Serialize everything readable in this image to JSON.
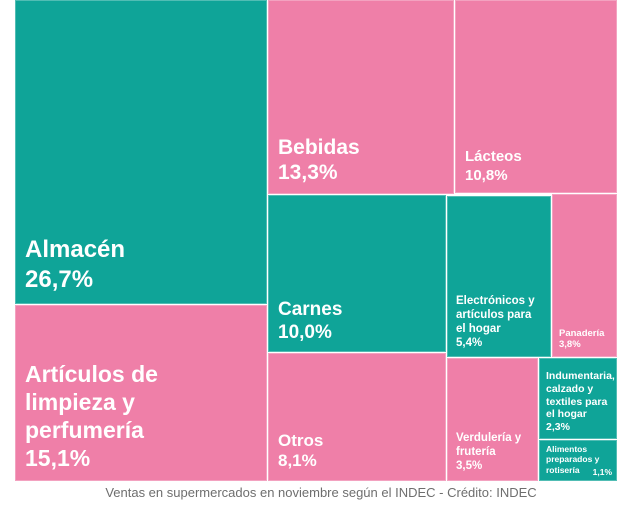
{
  "caption": "Ventas en supermercados en noviembre según el INDEC - Crédito: INDEC",
  "colors": {
    "teal": "#0FA498",
    "pink": "#EF7FA8",
    "label_text": "#FFFFFF",
    "caption_text": "#6E6E6E"
  },
  "cells": {
    "almacen": {
      "label": "Almacén",
      "value": "26,7%"
    },
    "articulos": {
      "label": "Artículos de\nlimpieza y\nperfumería",
      "value": "15,1%"
    },
    "bebidas": {
      "label": "Bebidas",
      "value": "13,3%"
    },
    "lacteos": {
      "label": "Lácteos",
      "value": "10,8%"
    },
    "carnes": {
      "label": "Carnes",
      "value": "10,0%"
    },
    "otros": {
      "label": "Otros",
      "value": "8,1%"
    },
    "electronicos": {
      "label": "Electrónicos y\nartículos para\nel hogar",
      "value": "5,4%"
    },
    "panaderia": {
      "label": "Panadería",
      "value": "3,8%"
    },
    "verduleria": {
      "label": "Verdulería y\nfrutería",
      "value": "3,5%"
    },
    "indumentaria": {
      "label": "Indumentaria,\ncalzado y\ntextiles para\nel hogar",
      "value": "2,3%"
    },
    "alimentos": {
      "label": "Alimentos\npreparados y\nrotisería",
      "value": "1,1%"
    }
  },
  "chart_data": {
    "type": "treemap",
    "title": "",
    "caption": "Ventas en supermercados en noviembre según el INDEC - Crédito: INDEC",
    "value_unit": "%",
    "decimal_separator": ",",
    "legend": "none",
    "items": [
      {
        "name": "Almacén",
        "value": 26.7,
        "color": "#0FA498"
      },
      {
        "name": "Artículos de limpieza y perfumería",
        "value": 15.1,
        "color": "#EF7FA8"
      },
      {
        "name": "Bebidas",
        "value": 13.3,
        "color": "#EF7FA8"
      },
      {
        "name": "Lácteos",
        "value": 10.8,
        "color": "#EF7FA8"
      },
      {
        "name": "Carnes",
        "value": 10.0,
        "color": "#0FA498"
      },
      {
        "name": "Otros",
        "value": 8.1,
        "color": "#EF7FA8"
      },
      {
        "name": "Electrónicos y artículos para el hogar",
        "value": 5.4,
        "color": "#0FA498"
      },
      {
        "name": "Panadería",
        "value": 3.8,
        "color": "#EF7FA8"
      },
      {
        "name": "Verdulería y frutería",
        "value": 3.5,
        "color": "#EF7FA8"
      },
      {
        "name": "Indumentaria, calzado y textiles para el hogar",
        "value": 2.3,
        "color": "#0FA498"
      },
      {
        "name": "Alimentos preparados y rotisería",
        "value": 1.1,
        "color": "#0FA498"
      }
    ]
  }
}
